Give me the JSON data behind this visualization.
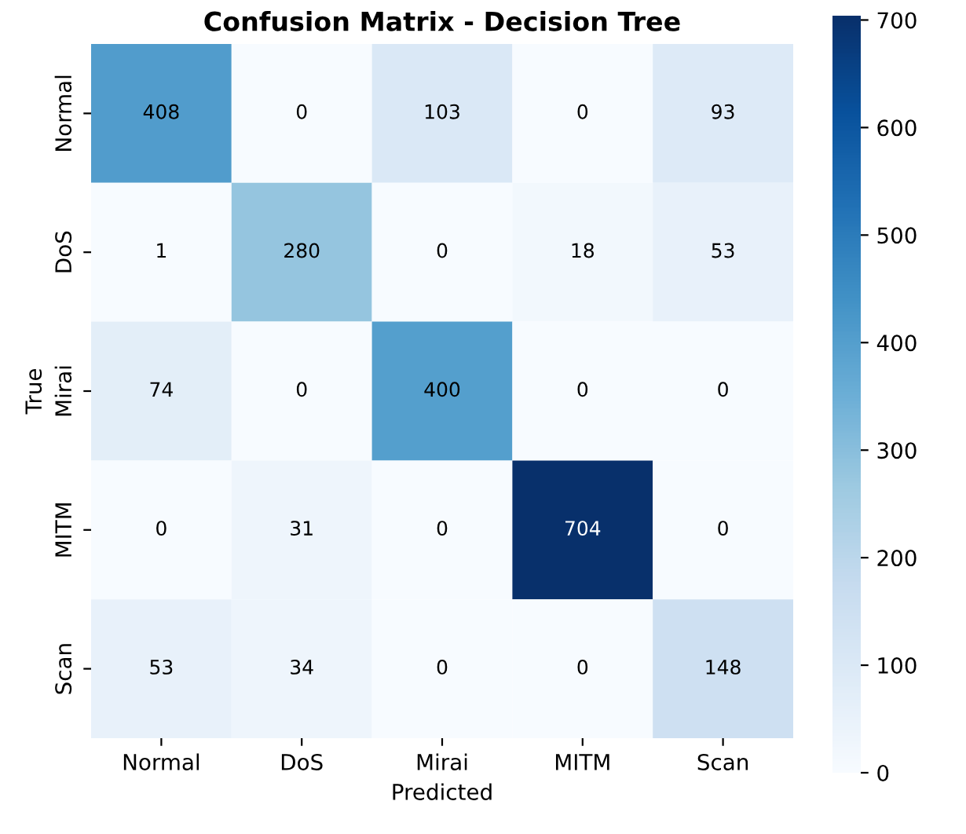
{
  "chart_data": {
    "type": "heatmap",
    "title": "Confusion Matrix - Decision Tree",
    "xlabel": "Predicted",
    "ylabel": "True",
    "categories": [
      "Normal",
      "DoS",
      "Mirai",
      "MITM",
      "Scan"
    ],
    "y_categories": [
      "Normal",
      "DoS",
      "Mirai",
      "MITM",
      "Scan"
    ],
    "cells": [
      [
        408,
        0,
        103,
        0,
        93
      ],
      [
        1,
        280,
        0,
        18,
        53
      ],
      [
        74,
        0,
        400,
        0,
        0
      ],
      [
        0,
        31,
        0,
        704,
        0
      ],
      [
        53,
        34,
        0,
        0,
        148
      ]
    ],
    "clim": [
      0,
      704
    ],
    "cticks": [
      0,
      100,
      200,
      300,
      400,
      500,
      600,
      700
    ],
    "data_labels": true
  }
}
